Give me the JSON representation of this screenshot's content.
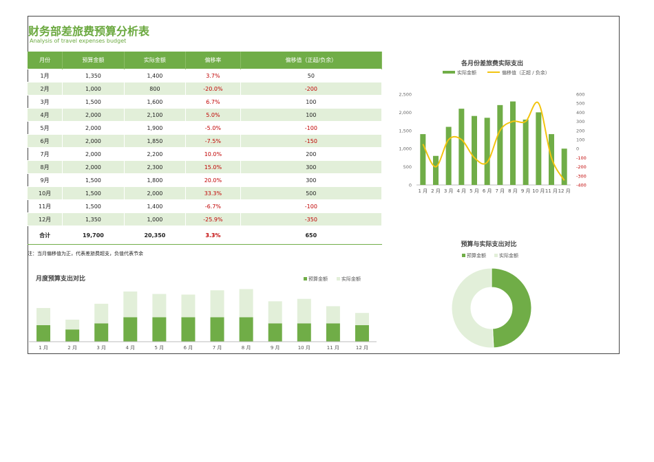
{
  "title": "财务部差旅费预算分析表",
  "subtitle": "Analysis of travel expenses budget",
  "table": {
    "headers": [
      "月份",
      "预算金额",
      "实际金额",
      "偏移率",
      "偏移值（正超/负余）"
    ],
    "rows": [
      {
        "month": "1月",
        "budget": "1,350",
        "actual": "1,400",
        "rate": "3.7%",
        "diff": "50"
      },
      {
        "month": "2月",
        "budget": "1,000",
        "actual": "800",
        "rate": "-20.0%",
        "diff": "-200"
      },
      {
        "month": "3月",
        "budget": "1,500",
        "actual": "1,600",
        "rate": "6.7%",
        "diff": "100"
      },
      {
        "month": "4月",
        "budget": "2,000",
        "actual": "2,100",
        "rate": "5.0%",
        "diff": "100"
      },
      {
        "month": "5月",
        "budget": "2,000",
        "actual": "1,900",
        "rate": "-5.0%",
        "diff": "-100"
      },
      {
        "month": "6月",
        "budget": "2,000",
        "actual": "1,850",
        "rate": "-7.5%",
        "diff": "-150"
      },
      {
        "month": "7月",
        "budget": "2,000",
        "actual": "2,200",
        "rate": "10.0%",
        "diff": "200"
      },
      {
        "month": "8月",
        "budget": "2,000",
        "actual": "2,300",
        "rate": "15.0%",
        "diff": "300"
      },
      {
        "month": "9月",
        "budget": "1,500",
        "actual": "1,800",
        "rate": "20.0%",
        "diff": "300"
      },
      {
        "month": "10月",
        "budget": "1,500",
        "actual": "2,000",
        "rate": "33.3%",
        "diff": "500"
      },
      {
        "month": "11月",
        "budget": "1,500",
        "actual": "1,400",
        "rate": "-6.7%",
        "diff": "-100"
      },
      {
        "month": "12月",
        "budget": "1,350",
        "actual": "1,000",
        "rate": "-25.9%",
        "diff": "-350"
      }
    ],
    "total": {
      "month": "合计",
      "budget": "19,700",
      "actual": "20,350",
      "rate": "3.3%",
      "diff": "650"
    }
  },
  "note": "注：当月偏移值为正，代表差旅费超支，负值代表节余",
  "colors": {
    "accent": "#70ad47",
    "light": "#e2efd9",
    "line": "#f2c40f",
    "negative": "#c00000"
  },
  "chart_data": [
    {
      "type": "bar",
      "title": "各月份差旅费实际支出",
      "categories": [
        "1月",
        "2月",
        "3月",
        "4月",
        "5月",
        "6月",
        "7月",
        "8月",
        "9月",
        "10月",
        "11月",
        "12月"
      ],
      "series": [
        {
          "name": "实际金额",
          "type": "bar",
          "axis": "left",
          "values": [
            1400,
            800,
            1600,
            2100,
            1900,
            1850,
            2200,
            2300,
            1800,
            2000,
            1400,
            1000
          ]
        },
        {
          "name": "偏移值（正超 / 负余）",
          "type": "line",
          "axis": "right",
          "values": [
            50,
            -200,
            100,
            100,
            -100,
            -150,
            200,
            300,
            300,
            500,
            -100,
            -350
          ]
        }
      ],
      "ylim_left": [
        0,
        2500
      ],
      "yticks_left": [
        "2,500",
        "2,000",
        "1,500",
        "1,000",
        "500",
        "0"
      ],
      "ylim_right": [
        -400,
        600
      ],
      "yticks_right": [
        "600",
        "500",
        "400",
        "300",
        "200",
        "100",
        "0",
        "-100",
        "-200",
        "-300",
        "-400"
      ],
      "legend": "top"
    },
    {
      "type": "bar",
      "title": "月度预算支出对比",
      "categories": [
        "1月",
        "2月",
        "3月",
        "4月",
        "5月",
        "6月",
        "7月",
        "8月",
        "9月",
        "10月",
        "11月",
        "12月"
      ],
      "series": [
        {
          "name": "预算金额",
          "values": [
            1350,
            1000,
            1500,
            2000,
            2000,
            2000,
            2000,
            2000,
            1500,
            1500,
            1500,
            1350
          ]
        },
        {
          "name": "实际金额",
          "values": [
            1400,
            800,
            1600,
            2100,
            1900,
            1850,
            2200,
            2300,
            1800,
            2000,
            1400,
            1000
          ]
        }
      ],
      "stacked": true,
      "legend": "top-right"
    },
    {
      "type": "pie",
      "title": "预算与实际支出对比",
      "labels": [
        "预算金额",
        "实际金额"
      ],
      "values": [
        19700,
        20350
      ],
      "donut": true,
      "legend": "top"
    }
  ]
}
